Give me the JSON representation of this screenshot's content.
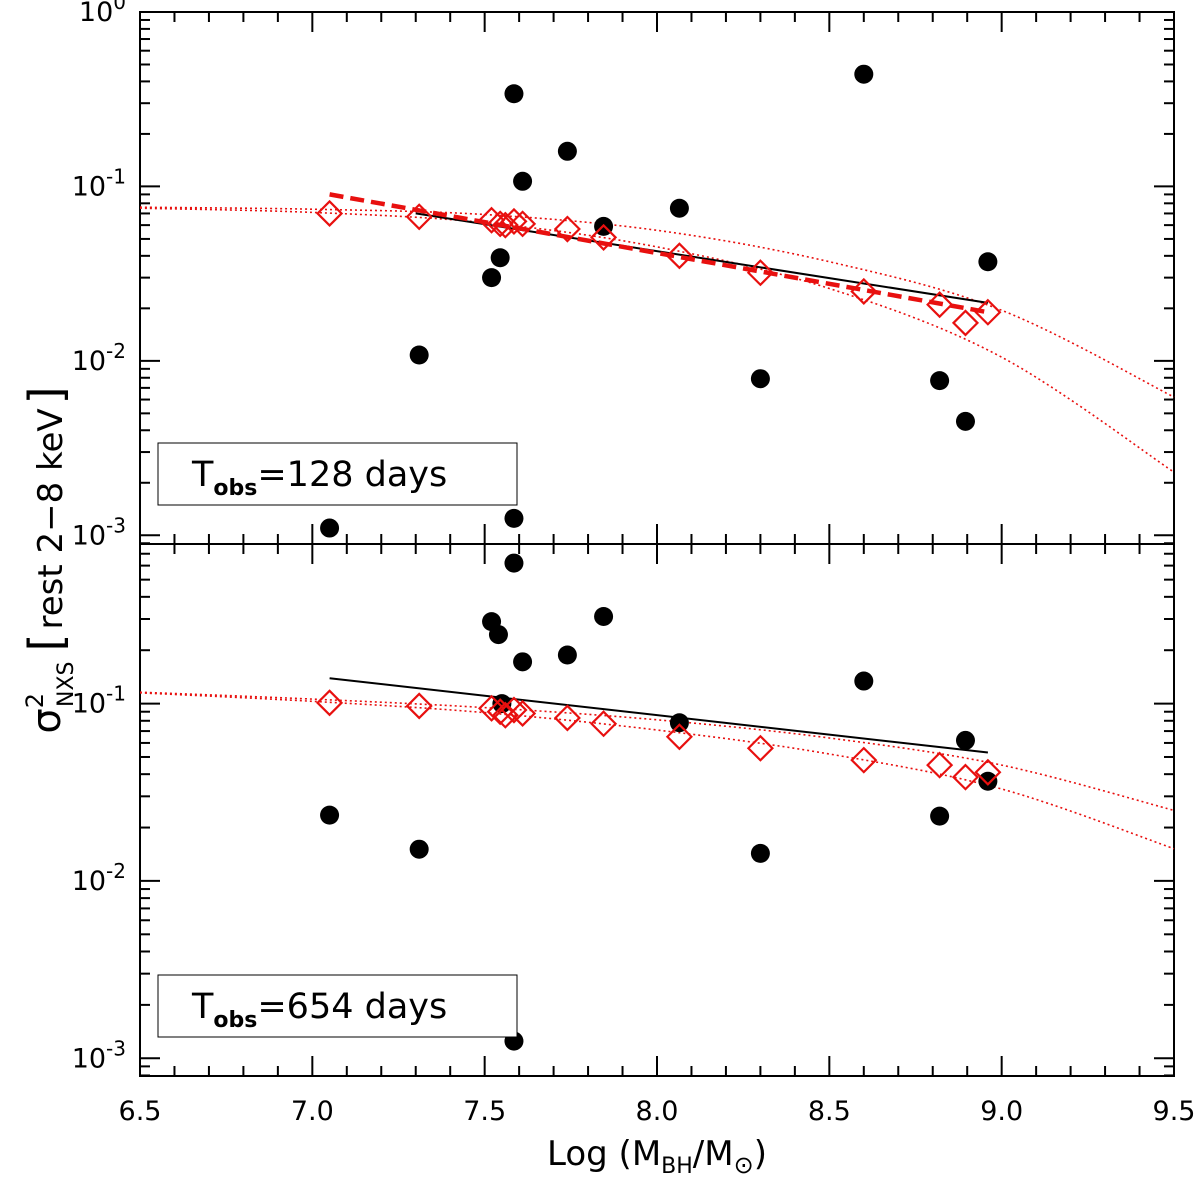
{
  "chart_data": [
    {
      "type": "scatter",
      "panel": "top",
      "annotation": {
        "label": "T",
        "subscript": "obs",
        "value": "=128 days"
      },
      "xlim": [
        6.5,
        9.5
      ],
      "ylim_log10": [
        -3.05,
        0
      ],
      "y_scale": "log",
      "y_tick_labels": [
        {
          "base": "10",
          "exp": "0",
          "log": 0
        },
        {
          "base": "10",
          "exp": "-1",
          "log": -1
        },
        {
          "base": "10",
          "exp": "-2",
          "log": -2
        },
        {
          "base": "10",
          "exp": "-3",
          "log": -3
        }
      ],
      "observed_points": {
        "x": [
          7.05,
          7.31,
          7.52,
          7.545,
          7.585,
          7.585,
          7.61,
          7.74,
          7.845,
          8.065,
          8.3,
          8.6,
          8.82,
          8.895,
          8.96
        ],
        "y": [
          0.0011,
          0.0108,
          0.03,
          0.039,
          0.34,
          0.00125,
          0.107,
          0.159,
          0.059,
          0.075,
          0.0079,
          0.44,
          0.0077,
          0.0045,
          0.037
        ]
      },
      "model_points": {
        "x": [
          7.05,
          7.31,
          7.52,
          7.545,
          7.56,
          7.585,
          7.61,
          7.74,
          7.845,
          8.065,
          8.3,
          8.6,
          8.82,
          8.895,
          8.96
        ],
        "y": [
          0.07,
          0.067,
          0.064,
          0.061,
          0.06,
          0.063,
          0.061,
          0.057,
          0.051,
          0.04,
          0.032,
          0.025,
          0.021,
          0.0165,
          0.019
        ]
      },
      "black_fit": {
        "x": [
          7.3,
          8.96
        ],
        "y": [
          0.07,
          0.0215
        ]
      },
      "red_dashed_fit": {
        "x": [
          7.05,
          8.96
        ],
        "y": [
          0.09,
          0.019
        ]
      },
      "red_dotted_upper": {
        "x": [
          6.5,
          7.0,
          7.5,
          8.0,
          8.5,
          9.0,
          9.5
        ],
        "y": [
          0.076,
          0.074,
          0.069,
          0.056,
          0.037,
          0.0195,
          0.0062
        ]
      },
      "red_dotted_lower": {
        "x": [
          6.5,
          7.0,
          7.5,
          8.0,
          8.5,
          9.0,
          9.5
        ],
        "y": [
          0.075,
          0.071,
          0.062,
          0.045,
          0.026,
          0.0105,
          0.0023
        ]
      }
    },
    {
      "type": "scatter",
      "panel": "bottom",
      "annotation": {
        "label": "T",
        "subscript": "obs",
        "value": "=654 days"
      },
      "xlim": [
        6.5,
        9.5
      ],
      "ylim_log10": [
        -3.1,
        -0.1
      ],
      "y_scale": "log",
      "y_tick_labels": [
        {
          "base": "10",
          "exp": "-1",
          "log": -1
        },
        {
          "base": "10",
          "exp": "-2",
          "log": -2
        },
        {
          "base": "10",
          "exp": "-3",
          "log": -3
        }
      ],
      "observed_points": {
        "x": [
          7.05,
          7.31,
          7.52,
          7.54,
          7.55,
          7.585,
          7.585,
          7.61,
          7.74,
          7.845,
          8.065,
          8.3,
          8.6,
          8.82,
          8.895,
          8.96
        ],
        "y": [
          0.0235,
          0.0151,
          0.29,
          0.245,
          0.1,
          0.62,
          0.00125,
          0.172,
          0.188,
          0.31,
          0.078,
          0.0143,
          0.134,
          0.0232,
          0.062,
          0.0365
        ]
      },
      "model_points": {
        "x": [
          7.05,
          7.31,
          7.52,
          7.545,
          7.56,
          7.585,
          7.61,
          7.74,
          7.845,
          8.065,
          8.3,
          8.6,
          8.82,
          8.895,
          8.96
        ],
        "y": [
          0.101,
          0.097,
          0.094,
          0.09,
          0.086,
          0.092,
          0.088,
          0.083,
          0.077,
          0.065,
          0.056,
          0.048,
          0.045,
          0.0385,
          0.041
        ]
      },
      "black_fit": {
        "x": [
          7.05,
          8.96
        ],
        "y": [
          0.139,
          0.053
        ]
      },
      "red_dotted_upper": {
        "x": [
          6.5,
          7.0,
          7.5,
          8.0,
          8.5,
          9.0,
          9.5
        ],
        "y": [
          0.116,
          0.106,
          0.095,
          0.081,
          0.064,
          0.045,
          0.025
        ]
      },
      "red_dotted_lower": {
        "x": [
          6.5,
          7.0,
          7.5,
          8.0,
          8.5,
          9.0,
          9.5
        ],
        "y": [
          0.115,
          0.103,
          0.089,
          0.071,
          0.052,
          0.033,
          0.0152
        ]
      }
    }
  ],
  "x_axis": {
    "ticks": [
      6.5,
      7.0,
      7.5,
      8.0,
      8.5,
      9.0,
      9.5
    ],
    "tick_labels": [
      "6.5",
      "7.0",
      "7.5",
      "8.0",
      "8.5",
      "9.0",
      "9.5"
    ],
    "label": {
      "prefix": "Log (M",
      "sub1": "BH",
      "middle": "/M",
      "sub2": "⊙",
      "suffix": ")"
    }
  },
  "y_axis": {
    "label": {
      "symbol": "σ",
      "sup": "2",
      "sub": "NXS",
      "bracket_open": "[",
      "text": "rest 2−8 keV",
      "bracket_close": "]"
    }
  },
  "colors": {
    "observed": "#000000",
    "model": "#e8100f",
    "fit": "#000000",
    "frame": "#000000"
  }
}
